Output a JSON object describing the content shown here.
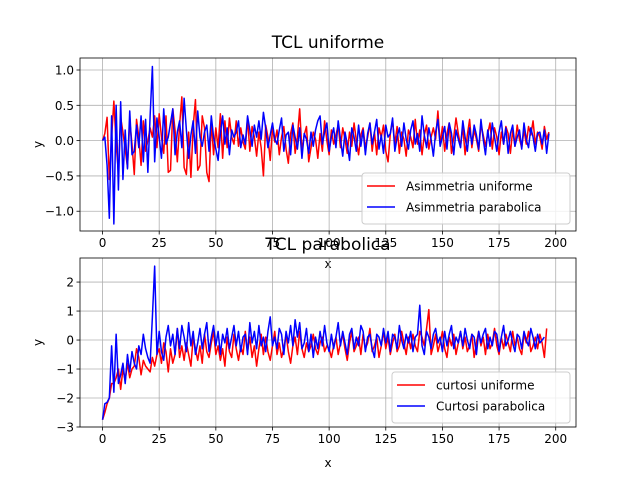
{
  "chart_data": [
    {
      "type": "line",
      "title": "TCL uniforme",
      "xlabel": "x",
      "ylabel": "y",
      "xlim": [
        -9.95,
        208.95
      ],
      "ylim": [
        -1.28,
        1.17
      ],
      "grid": true,
      "legend_position": "lower-right",
      "x_ticks": [
        0,
        25,
        50,
        75,
        100,
        125,
        150,
        175,
        200
      ],
      "y_ticks": [
        -1.0,
        -0.5,
        0.0,
        0.5,
        1.0
      ],
      "x_tick_labels": [
        "0",
        "25",
        "50",
        "75",
        "100",
        "125",
        "150",
        "175",
        "200"
      ],
      "y_tick_labels": [
        "−1.0",
        "−0.5",
        "0.0",
        "0.5",
        "1.0"
      ],
      "series": [
        {
          "name": "Asimmetria uniforme",
          "color": "#ff0000",
          "values": [
            0.0,
            0.1,
            0.33,
            -0.55,
            0.05,
            0.56,
            -0.05,
            -0.45,
            0.33,
            0.12,
            -0.12,
            -0.38,
            0.28,
            -0.05,
            -0.48,
            0.3,
            0.05,
            -0.35,
            0.28,
            -0.15,
            0.0,
            0.18,
            0.05,
            0.35,
            -0.1,
            0.38,
            0.05,
            -0.18,
            0.35,
            -0.45,
            -0.42,
            0.45,
            0.15,
            -0.3,
            0.22,
            0.62,
            -0.38,
            -0.48,
            0.12,
            -0.52,
            0.2,
            0.58,
            -0.42,
            -0.35,
            0.35,
            0.18,
            -0.45,
            -0.58,
            0.28,
            -0.2,
            0.18,
            -0.1,
            0.38,
            -0.25,
            0.28,
            -0.1,
            0.32,
            0.05,
            -0.05,
            0.28,
            -0.08,
            0.18,
            -0.02,
            -0.12,
            0.32,
            -0.15,
            0.2,
            0.05,
            -0.22,
            0.12,
            -0.1,
            -0.5,
            0.22,
            0.05,
            -0.28,
            0.18,
            -0.02,
            0.15,
            -0.2,
            0.05,
            0.2,
            -0.12,
            -0.32,
            0.1,
            0.25,
            -0.18,
            0.05,
            0.45,
            -0.15,
            0.08,
            0.2,
            -0.3,
            -0.1,
            0.12,
            0.02,
            -0.25,
            0.1,
            -0.15,
            0.28,
            0.0,
            -0.2,
            0.15,
            -0.05,
            0.08,
            0.22,
            -0.1,
            0.18,
            0.02,
            -0.18,
            0.12,
            -0.08,
            0.25,
            0.0,
            -0.2,
            0.08,
            0.18,
            -0.1,
            0.05,
            0.25,
            -0.15,
            0.12,
            -0.2,
            0.18,
            0.05,
            0.22,
            -0.15,
            -0.3,
            0.1,
            0.28,
            -0.05,
            0.2,
            -0.18,
            0.12,
            0.02,
            -0.22,
            0.15,
            0.05,
            -0.1,
            0.3,
            -0.05,
            0.15,
            -0.2,
            0.08,
            0.22,
            -0.12,
            0.05,
            0.18,
            0.02,
            0.42,
            -0.05,
            0.2,
            -0.15,
            0.1,
            0.25,
            -0.18,
            0.05,
            0.32,
            0.1,
            -0.08,
            0.2,
            -0.2,
            0.08,
            0.3,
            -0.1,
            0.15,
            0.02,
            -0.15,
            0.22,
            0.08,
            -0.08,
            0.1,
            0.25,
            -0.12,
            0.18,
            0.05,
            -0.2,
            0.12,
            -0.05,
            0.2,
            0.1,
            -0.18,
            0.15,
            -0.08,
            0.22,
            0.02,
            -0.1,
            0.15,
            -0.05,
            0.2,
            0.08,
            0.28,
            -0.05,
            0.12,
            0.05,
            -0.12,
            0.2,
            0.02,
            0.12
          ]
        },
        {
          "name": "Asimmetria parabolica",
          "color": "#0000ff",
          "values": [
            0.0,
            0.05,
            -0.35,
            -1.1,
            0.35,
            -1.18,
            0.5,
            -0.7,
            0.55,
            -0.55,
            0.15,
            -0.4,
            0.42,
            -0.2,
            -0.15,
            0.22,
            -0.1,
            0.35,
            -0.3,
            0.3,
            -0.45,
            0.35,
            1.05,
            -0.3,
            0.32,
            0.05,
            -0.25,
            0.45,
            -0.05,
            0.05,
            0.25,
            0.45,
            -0.2,
            0.12,
            0.28,
            -0.1,
            0.6,
            0.15,
            -0.25,
            0.08,
            0.28,
            -0.18,
            0.42,
            0.05,
            -0.08,
            0.12,
            0.22,
            -0.15,
            0.35,
            0.05,
            -0.12,
            -0.28,
            0.1,
            0.35,
            -0.05,
            0.18,
            -0.2,
            0.15,
            0.05,
            0.12,
            0.28,
            -0.1,
            0.08,
            -0.05,
            0.35,
            0.15,
            -0.08,
            0.22,
            0.05,
            0.28,
            0.02,
            0.4,
            0.18,
            -0.1,
            0.08,
            0.25,
            0.02,
            -0.05,
            0.15,
            0.32,
            -0.15,
            0.08,
            0.12,
            -0.2,
            0.22,
            0.05,
            -0.12,
            0.18,
            -0.25,
            0.1,
            0.02,
            -0.18,
            0.12,
            -0.08,
            0.15,
            0.28,
            0.35,
            -0.05,
            0.12,
            0.25,
            -0.15,
            0.05,
            0.18,
            -0.1,
            0.28,
            0.02,
            -0.22,
            0.12,
            -0.05,
            -0.28,
            0.18,
            0.05,
            -0.15,
            0.22,
            -0.08,
            0.15,
            -0.2,
            0.1,
            0.25,
            -0.05,
            0.12,
            0.3,
            -0.12,
            0.08,
            -0.18,
            0.22,
            0.05,
            0.1,
            0.32,
            -0.15,
            0.05,
            0.18,
            -0.08,
            0.25,
            0.02,
            -0.12,
            0.15,
            0.28,
            -0.05,
            0.1,
            -0.15,
            0.35,
            0.08,
            -0.1,
            0.18,
            0.02,
            -0.22,
            0.12,
            0.3,
            -0.08,
            0.05,
            0.2,
            -0.12,
            0.25,
            0.1,
            -0.2,
            0.15,
            0.02,
            -0.1,
            0.28,
            0.05,
            -0.15,
            0.18,
            -0.05,
            0.22,
            0.08,
            -0.12,
            0.3,
            0.02,
            -0.2,
            0.15,
            -0.08,
            0.25,
            0.05,
            -0.15,
            0.12,
            0.28,
            -0.05,
            0.18,
            -0.18,
            0.1,
            0.22,
            -0.08,
            0.05,
            0.15,
            -0.12,
            0.25,
            0.02,
            -0.1,
            0.18,
            0.05,
            -0.15,
            0.1,
            0.12,
            -0.05,
            0.15,
            -0.18,
            0.1
          ]
        }
      ]
    },
    {
      "type": "line",
      "title": "TCL parabolica",
      "xlabel": "x",
      "ylabel": "y",
      "xlim": [
        -9.95,
        208.95
      ],
      "ylim": [
        -3.0,
        2.83
      ],
      "grid": true,
      "legend_position": "lower-right",
      "x_ticks": [
        0,
        25,
        50,
        75,
        100,
        125,
        150,
        175,
        200
      ],
      "y_ticks": [
        -3,
        -2,
        -1,
        0,
        1,
        2
      ],
      "x_tick_labels": [
        "0",
        "25",
        "50",
        "75",
        "100",
        "125",
        "150",
        "175",
        "200"
      ],
      "y_tick_labels": [
        "−3",
        "−2",
        "−1",
        "0",
        "1",
        "2"
      ],
      "series": [
        {
          "name": "curtosi uniforme",
          "color": "#ff0000",
          "values": [
            -2.75,
            -2.5,
            -2.2,
            -2.0,
            -1.5,
            -1.5,
            -1.3,
            -1.0,
            -1.7,
            -1.0,
            -1.4,
            -0.8,
            -1.3,
            -1.0,
            -0.9,
            -0.3,
            -0.6,
            -1.2,
            -0.7,
            -0.9,
            -1.0,
            -1.1,
            -0.6,
            -0.9,
            -0.5,
            -0.3,
            -0.8,
            -0.1,
            -0.4,
            -1.1,
            -0.3,
            -0.8,
            -0.5,
            0.4,
            -0.6,
            -0.2,
            -0.7,
            -0.1,
            -0.5,
            -0.9,
            0.1,
            -0.3,
            -0.7,
            -0.2,
            -0.8,
            0.2,
            -0.4,
            -0.6,
            -0.1,
            0.3,
            -0.5,
            -0.2,
            -0.7,
            -0.3,
            -0.9,
            0.1,
            -0.4,
            -0.6,
            0.2,
            -0.3,
            -0.7,
            -0.2,
            -0.5,
            0.3,
            -0.4,
            0.1,
            -0.6,
            -0.2,
            -0.9,
            -0.3,
            0.2,
            -0.5,
            0.1,
            -0.4,
            -0.7,
            -0.2,
            0.3,
            -0.5,
            -0.1,
            -0.6,
            -0.3,
            0.2,
            -0.4,
            -0.8,
            -0.2,
            0.1,
            -0.5,
            0.3,
            -0.3,
            -0.6,
            -0.1,
            -0.4,
            -0.2,
            0.2,
            -0.3,
            -0.5,
            -0.1,
            0.1,
            -0.4,
            -0.2,
            -0.3,
            -0.6,
            -0.2,
            0.1,
            -0.5,
            -0.1,
            0.2,
            -0.3,
            -0.7,
            -0.1,
            0.3,
            -0.4,
            -0.2,
            0.1,
            -0.5,
            0.2,
            -0.3,
            -0.1,
            0.4,
            -0.4,
            -0.2,
            0.1,
            -0.6,
            -0.2,
            0.3,
            -0.3,
            0.1,
            -0.5,
            -0.1,
            0.2,
            -0.4,
            -0.2,
            0.3,
            -0.1,
            -0.5,
            0.1,
            -0.3,
            0.2,
            -0.2,
            -0.4,
            0.3,
            0.1,
            -0.2,
            0.4,
            1.05,
            -0.5,
            -0.2,
            0.2,
            -0.4,
            -0.1,
            0.3,
            -0.3,
            -0.6,
            0.1,
            -0.2,
            0.2,
            -0.5,
            -0.1,
            0.3,
            -0.3,
            0.1,
            -0.4,
            -0.2,
            0.2,
            -0.6,
            -0.1,
            0.3,
            -0.2,
            0.1,
            -0.5,
            0.2,
            -0.3,
            -0.1,
            0.4,
            -0.2,
            -0.5,
            0.1,
            -0.3,
            0.2,
            -0.1,
            -0.4,
            0.3,
            -0.2,
            0.1,
            -0.3,
            -0.5,
            0.2,
            -0.1,
            0.3,
            -0.4,
            -0.2,
            0.1,
            -0.3,
            0.2,
            -0.1,
            -0.6,
            0.4
          ]
        },
        {
          "name": "Curtosi parabolica",
          "color": "#0000ff",
          "values": [
            -2.75,
            -2.2,
            -2.15,
            -2.0,
            -0.2,
            -1.8,
            0.2,
            -1.5,
            -1.2,
            -0.8,
            -1.5,
            -0.5,
            -1.1,
            -0.4,
            -0.8,
            -1.0,
            -0.2,
            -0.5,
            0.2,
            -0.3,
            -0.6,
            -0.8,
            0.8,
            2.55,
            -0.5,
            0.3,
            -0.4,
            -0.7,
            0.1,
            0.5,
            -0.2,
            0.2,
            -0.5,
            0.4,
            -0.3,
            0.5,
            0.1,
            -0.4,
            0.6,
            -0.2,
            0.3,
            -0.5,
            -0.1,
            0.4,
            -0.3,
            0.2,
            0.6,
            -0.4,
            0.1,
            0.5,
            -0.2,
            0.3,
            -0.5,
            0.2,
            -0.1,
            0.4,
            -0.3,
            0.1,
            0.5,
            -0.2,
            0.3,
            -0.4,
            0.1,
            0.2,
            -0.5,
            0.6,
            -0.1,
            0.3,
            -0.3,
            0.5,
            -0.2,
            0.1,
            -0.4,
            0.3,
            0.8,
            -0.2,
            0.1,
            -0.3,
            0.4,
            0.2,
            -0.5,
            0.3,
            -0.1,
            0.5,
            -0.2,
            0.7,
            0.1,
            0.6,
            -0.3,
            -0.1,
            0.4,
            -0.4,
            0.2,
            -0.6,
            0.1,
            -0.3,
            0.3,
            -0.2,
            0.5,
            -0.1,
            -0.4,
            0.2,
            -0.3,
            0.1,
            0.6,
            -0.2,
            0.3,
            -0.1,
            -0.5,
            0.2,
            0.4,
            -0.3,
            0.1,
            -0.2,
            0.5,
            0.3,
            -0.4,
            0.1,
            0.2,
            -0.3,
            -0.6,
            0.2,
            0.1,
            -0.2,
            0.4,
            -0.1,
            0.3,
            -0.4,
            0.2,
            0.1,
            -0.3,
            0.5,
            0.0,
            -0.3,
            0.2,
            -0.1,
            0.3,
            -0.4,
            0.1,
            0.2,
            1.2,
            -0.2,
            -0.5,
            0.3,
            0.1,
            -0.3,
            0.2,
            0.4,
            -0.1,
            0.1,
            -0.4,
            0.3,
            -0.2,
            0.2,
            0.5,
            -0.3,
            0.1,
            -0.1,
            0.3,
            -0.2,
            0.4,
            0.0,
            -0.3,
            0.2,
            0.1,
            -0.5,
            0.3,
            -0.1,
            0.2,
            0.4,
            -0.3,
            0.1,
            -0.2,
            0.3,
            0.2,
            -0.4,
            0.1,
            0.5,
            -0.2,
            0.0,
            0.3,
            -0.1,
            -0.4,
            0.2,
            0.1,
            -0.3,
            0.3,
            0.0,
            -0.2,
            0.4,
            0.1,
            -0.3,
            0.2,
            -0.1,
            0.0,
            0.1
          ]
        }
      ]
    }
  ]
}
